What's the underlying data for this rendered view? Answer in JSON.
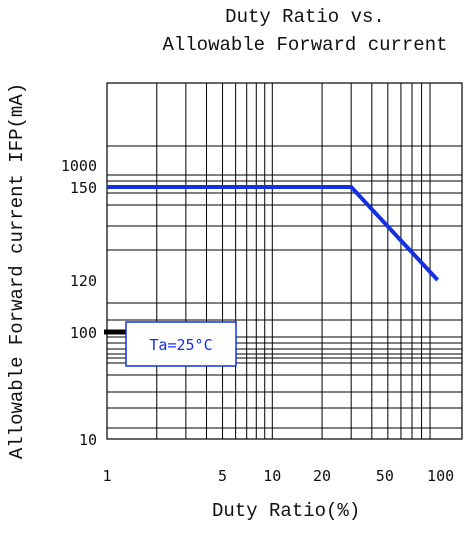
{
  "chart_data": {
    "type": "line",
    "title": "Duty Ratio vs.",
    "subtitle": "Allowable Forward current",
    "xlabel": "Duty Ratio(%)",
    "ylabel": "Allowable Forward current IFP(mA)",
    "x_scale": "log",
    "x_ticks": [
      {
        "value": 1,
        "label": "1"
      },
      {
        "value": 5,
        "label": "5"
      },
      {
        "value": 10,
        "label": "10"
      },
      {
        "value": 20,
        "label": "20"
      },
      {
        "value": 50,
        "label": "50"
      },
      {
        "value": 100,
        "label": "100"
      }
    ],
    "y_ticks": [
      "1000",
      "150",
      "120",
      "100",
      "10"
    ],
    "grid": true,
    "series": [
      {
        "color": "#1530e0",
        "points": [
          {
            "x": 1,
            "y": 150
          },
          {
            "x": 30,
            "y": 150
          },
          {
            "x": 100,
            "y": 120
          }
        ]
      }
    ],
    "marker": {
      "x": 1,
      "y": 100,
      "color": "#000000"
    },
    "annotation": "Ta=25°C"
  }
}
